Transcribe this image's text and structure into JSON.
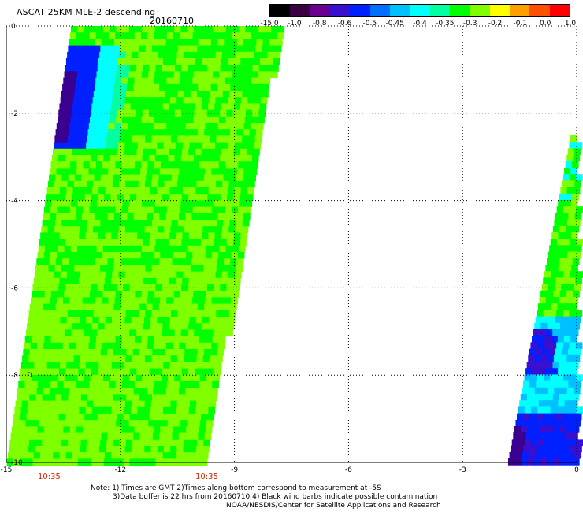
{
  "header": {
    "title": "ASCAT 25KM MLE-2 descending",
    "date": "20160710"
  },
  "colorbar": {
    "labels": [
      "-15.0",
      "-1.0",
      "-0.8",
      "-0.6",
      "-0.5",
      "-0.45",
      "-0.4",
      "-0.35",
      "-0.3",
      "-0.2",
      "-0.1",
      "0.0",
      "1.0"
    ],
    "colors": [
      "#000000",
      "#3a0040",
      "#6a0090",
      "#3a10d0",
      "#0020ff",
      "#0070ff",
      "#00c0ff",
      "#00ffff",
      "#00ffa0",
      "#00ff00",
      "#80ff00",
      "#ffff00",
      "#ffa000",
      "#ff5000",
      "#ff0000"
    ]
  },
  "axes": {
    "x_ticks": [
      "-15",
      "-12",
      "-9",
      "-6",
      "-3",
      "0"
    ],
    "y_ticks": [
      "0",
      "-2",
      "-4",
      "-6",
      "-8",
      "-10"
    ]
  },
  "times": [
    "10:35",
    "10:35"
  ],
  "marker": "D",
  "notes": {
    "line1": "Note: 1) Times are GMT 2)Times along bottom correspond to measurement at -5S",
    "line2": "3)Data buffer is 22 hrs from 20160710 4) Black wind barbs indicate possible contamination",
    "line3": "NOAA/NESDIS/Center for Satellite Applications and Research"
  },
  "swaths": {
    "palette": {
      "green": "#00ff00",
      "lime": "#80ff00",
      "cyan": "#00ffff",
      "blue": "#0020ff",
      "purple": "#3a0090"
    }
  }
}
